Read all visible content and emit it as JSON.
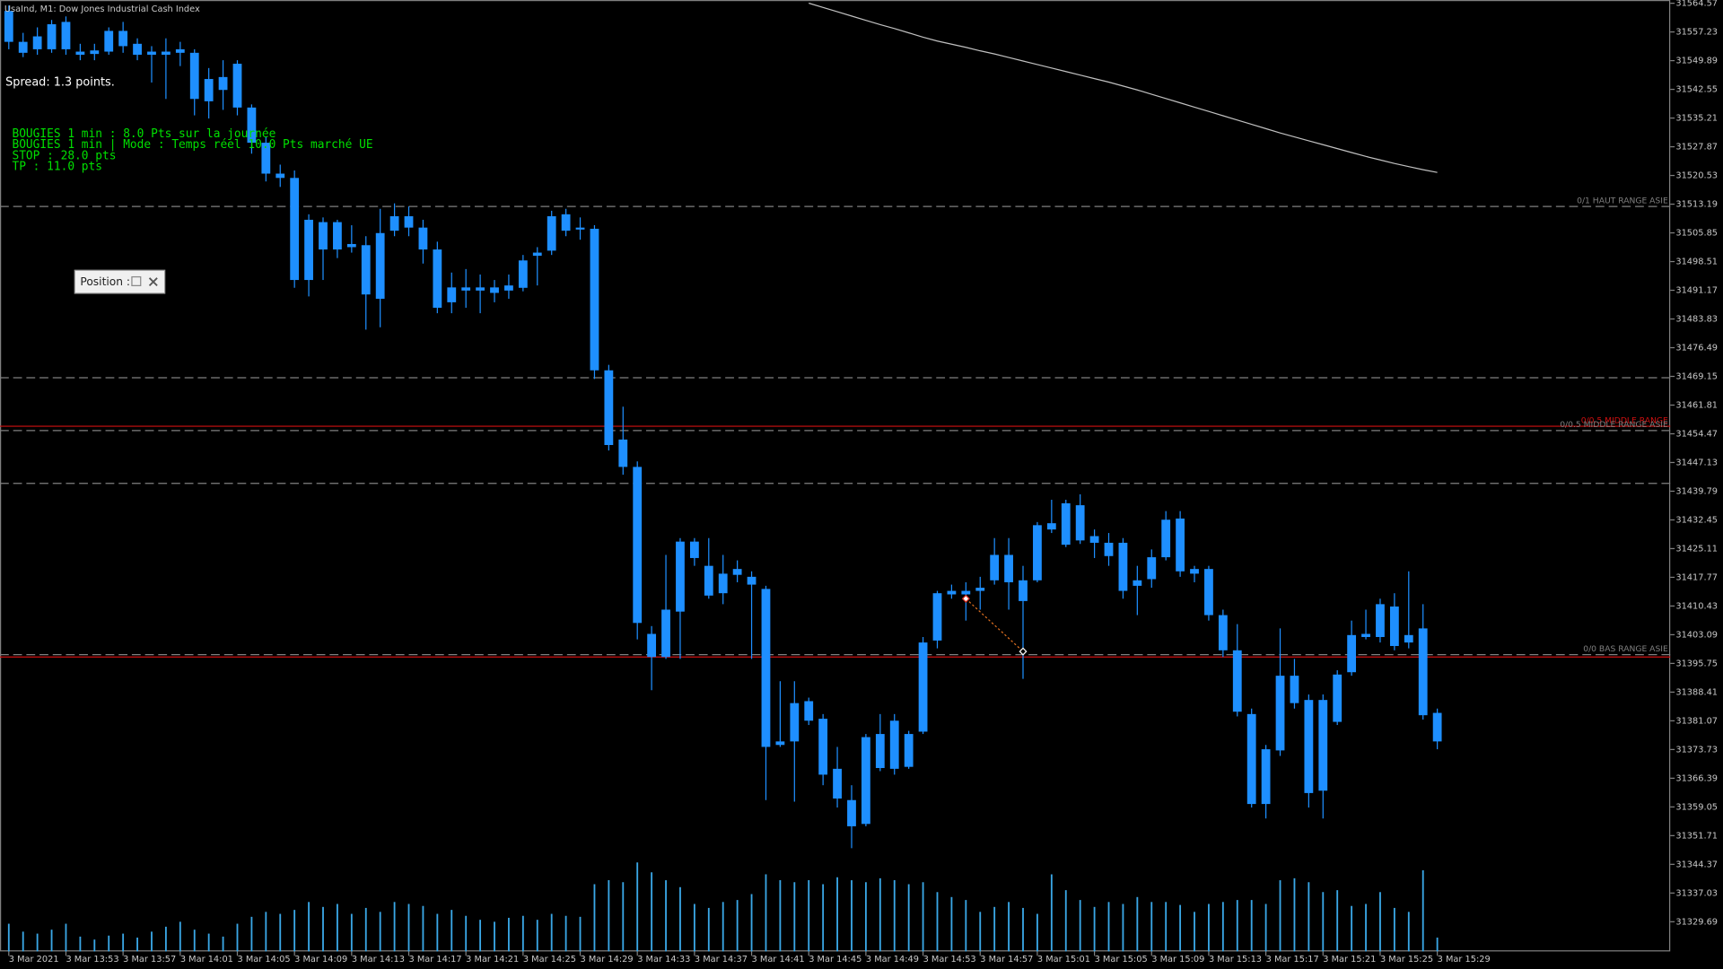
{
  "chart_data": {
    "type": "candlestick",
    "title": "UsaInd, M1:  Dow Jones Industrial Cash Index",
    "spread": "Spread: 1.3 points.",
    "info_lines": [
      "BOUGIES 1 min : 8.0 Pts sur la journée",
      "BOUGIES 1 min | Mode : Temps réel 10.0 Pts marché UE",
      "STOP : 28.0 pts",
      "TP : 11.0 pts"
    ],
    "panel": "Position :",
    "color": "#1e8fff",
    "volume_color": "#3aa7e6",
    "ma_color": "#c0c0c0",
    "categories": [
      "3 Mar 2021",
      null,
      null,
      null,
      "3 Mar 13:53",
      null,
      null,
      null,
      "3 Mar 13:57",
      null,
      null,
      null,
      "3 Mar 14:01",
      null,
      null,
      null,
      "3 Mar 14:05",
      null,
      null,
      null,
      "3 Mar 14:09",
      null,
      null,
      null,
      "3 Mar 14:13",
      null,
      null,
      null,
      "3 Mar 14:17",
      null,
      null,
      null,
      "3 Mar 14:21",
      null,
      null,
      null,
      "3 Mar 14:25",
      null,
      null,
      null,
      "3 Mar 14:29",
      null,
      null,
      null,
      "3 Mar 14:33",
      null,
      null,
      null,
      "3 Mar 14:37",
      null,
      null,
      null,
      "3 Mar 14:41",
      null,
      null,
      null,
      "3 Mar 14:45",
      null,
      null,
      null,
      "3 Mar 14:49",
      null,
      null,
      null,
      "3 Mar 14:53",
      null,
      null,
      null,
      "3 Mar 14:57",
      null,
      null,
      null,
      "3 Mar 15:01",
      null,
      null,
      null,
      "3 Mar 15:05",
      null,
      null,
      null,
      "3 Mar 15:09",
      null,
      null,
      null,
      "3 Mar 15:13",
      null,
      null,
      null,
      "3 Mar 15:17",
      null,
      null,
      null,
      "3 Mar 15:21",
      null,
      null,
      null,
      "3 Mar 15:25",
      null,
      null,
      null,
      "3 Mar 15:29"
    ],
    "open": [
      31562.6,
      31554.7,
      31552.8,
      31552.8,
      31559.8,
      31552.2,
      31551.6,
      31552.2,
      31557.5,
      31554.2,
      31552.2,
      31551.4,
      31552.8,
      31551.9,
      31539.5,
      31542.4,
      31549.1,
      31537.9,
      31528.9,
      31521.0,
      31519.9,
      31493.8,
      31508.6,
      31501.6,
      31503.0,
      31502.7,
      31489.0,
      31506.4,
      31510.1,
      31507.2,
      31501.6,
      31488.1,
      31491.9,
      31491.1,
      31491.9,
      31491.1,
      31491.8,
      31500.0,
      31501.3,
      31510.6,
      31507.2,
      31506.9,
      31470.7,
      31453.0,
      31446.0,
      31403.3,
      31397.4,
      31409.0,
      31426.9,
      31420.7,
      31413.7,
      31419.9,
      31417.9,
      31414.8,
      31375.8,
      31375.8,
      31386.1,
      31381.6,
      31368.8,
      31360.8,
      31354.7,
      31377.7,
      31368.8,
      31377.7,
      31378.3,
      31401.6,
      31414.3,
      31414.3,
      31414.3,
      31417.0,
      31423.5,
      31417.0,
      31417.0,
      31431.6,
      31426.1,
      31436.2,
      31428.3,
      31426.6,
      31414.3,
      31417.0,
      31417.3,
      31422.9,
      31432.8,
      31419.9,
      31419.9,
      31408.1,
      31399.1,
      31382.8,
      31359.8,
      31373.5,
      31392.6,
      31386.4,
      31363.2,
      31380.8,
      31393.5,
      31403.3,
      31402.5,
      31410.3,
      31401.1,
      31404.7,
      31383.1
    ],
    "high": [
      31564.0,
      31557.0,
      31558.4,
      31560.3,
      31561.2,
      31554.2,
      31554.2,
      31558.4,
      31559.8,
      31555.6,
      31553.6,
      31555.6,
      31554.7,
      31552.8,
      31548.0,
      31550.0,
      31550.0,
      31538.7,
      31530.3,
      31523.3,
      31521.8,
      31510.6,
      31509.8,
      31509.2,
      31507.8,
      31505.0,
      31512.0,
      31513.4,
      31512.6,
      31509.2,
      31503.6,
      31495.7,
      31496.6,
      31495.2,
      31493.8,
      31495.2,
      31500.2,
      31502.2,
      31511.5,
      31512.0,
      31509.8,
      31507.8,
      31472.1,
      31461.4,
      31447.4,
      31405.3,
      31423.5,
      31427.8,
      31427.8,
      31427.8,
      31423.5,
      31422.1,
      31419.3,
      31415.6,
      31391.2,
      31391.2,
      31387.0,
      31382.8,
      31374.4,
      31364.6,
      31377.7,
      31382.8,
      31382.8,
      31378.5,
      31402.5,
      31414.3,
      31415.9,
      31416.5,
      31417.9,
      31427.8,
      31427.8,
      31420.7,
      31431.9,
      31437.6,
      31437.6,
      31439.0,
      31430.0,
      31429.1,
      31427.8,
      31420.7,
      31424.9,
      31434.7,
      31434.7,
      31420.7,
      31420.7,
      31409.5,
      31405.8,
      31384.2,
      31374.9,
      31404.7,
      31396.9,
      31387.8,
      31387.8,
      31394.0,
      31406.7,
      31409.5,
      31412.3,
      31413.7,
      31419.3,
      31410.9,
      31384.2
    ],
    "low": [
      31552.8,
      31550.8,
      31551.4,
      31551.9,
      31551.4,
      31550.0,
      31550.0,
      31551.4,
      31551.9,
      31550.0,
      31544.3,
      31540.1,
      31548.5,
      31535.9,
      31535.1,
      31537.3,
      31535.9,
      31526.1,
      31519.0,
      31517.6,
      31491.8,
      31489.6,
      31493.8,
      31499.4,
      31500.8,
      31481.1,
      31481.7,
      31505.0,
      31505.0,
      31498.0,
      31485.3,
      31485.3,
      31486.7,
      31485.3,
      31488.1,
      31489.0,
      31490.9,
      31492.4,
      31500.2,
      31505.0,
      31504.1,
      31468.5,
      31450.2,
      31444.0,
      31401.9,
      31388.9,
      31396.9,
      31396.9,
      31420.7,
      31412.3,
      31410.9,
      31416.5,
      31396.9,
      31360.8,
      31374.4,
      31360.4,
      31380.0,
      31364.6,
      31358.9,
      31348.5,
      31354.1,
      31368.2,
      31367.3,
      31368.8,
      31377.7,
      31399.6,
      31412.3,
      31406.7,
      31409.5,
      31415.9,
      31409.5,
      31391.8,
      31416.5,
      31429.1,
      31425.5,
      31426.3,
      31422.7,
      31420.7,
      31412.3,
      31408.1,
      31415.1,
      31422.1,
      31417.9,
      31416.5,
      31406.7,
      31397.4,
      31382.2,
      31358.9,
      31356.1,
      31372.1,
      31384.2,
      31358.9,
      31356.1,
      31380.0,
      31392.6,
      31401.9,
      31401.1,
      31399.1,
      31399.6,
      31381.4,
      31373.8
    ],
    "close": [
      31554.7,
      31551.9,
      31556.1,
      31559.2,
      31552.8,
      31551.4,
      31552.5,
      31557.5,
      31553.6,
      31551.4,
      31551.4,
      31552.2,
      31551.9,
      31540.1,
      31545.2,
      31545.7,
      31537.9,
      31528.9,
      31521.0,
      31519.9,
      31493.8,
      31509.2,
      31501.6,
      31508.6,
      31502.2,
      31490.1,
      31505.8,
      31510.1,
      31507.2,
      31501.6,
      31486.7,
      31491.9,
      31491.1,
      31491.9,
      31490.5,
      31492.4,
      31498.8,
      31500.8,
      31510.1,
      31506.4,
      31506.7,
      31470.7,
      31451.6,
      31446.0,
      31406.1,
      31397.4,
      31409.5,
      31426.9,
      31422.7,
      31413.1,
      31418.7,
      31418.4,
      31415.9,
      31374.4,
      31374.9,
      31385.6,
      31381.1,
      31367.3,
      31361.2,
      31354.1,
      31376.9,
      31369.0,
      31381.1,
      31369.3,
      31401.1,
      31413.7,
      31413.4,
      31413.4,
      31415.1,
      31423.5,
      31416.5,
      31411.7,
      31431.1,
      31430.0,
      31436.7,
      31427.2,
      31426.6,
      31423.2,
      31426.6,
      31415.6,
      31422.9,
      31432.5,
      31419.3,
      31418.7,
      31408.1,
      31399.1,
      31383.4,
      31359.8,
      31373.8,
      31392.6,
      31385.6,
      31362.6,
      31386.4,
      31392.9,
      31403.0,
      31402.5,
      31410.9,
      31400.2,
      31403.0,
      31382.5,
      31375.8
    ],
    "volumes": [
      28,
      20,
      18,
      22,
      28,
      15,
      12,
      16,
      18,
      14,
      20,
      25,
      30,
      22,
      18,
      15,
      28,
      35,
      40,
      38,
      42,
      50,
      45,
      48,
      38,
      44,
      40,
      50,
      48,
      46,
      38,
      42,
      36,
      32,
      30,
      34,
      36,
      32,
      38,
      36,
      35,
      68,
      72,
      70,
      90,
      80,
      72,
      65,
      48,
      44,
      50,
      52,
      58,
      78,
      72,
      70,
      72,
      68,
      75,
      72,
      70,
      74,
      72,
      68,
      70,
      60,
      55,
      52,
      40,
      45,
      50,
      44,
      38,
      78,
      62,
      52,
      45,
      50,
      48,
      55,
      50,
      50,
      47,
      40,
      48,
      50,
      52,
      52,
      48,
      72,
      74,
      70,
      60,
      62,
      46,
      48,
      60,
      44,
      40,
      82,
      14
    ],
    "volume_ylim": [
      0,
      100
    ],
    "ma": [
      null,
      null,
      null,
      null,
      null,
      null,
      null,
      null,
      null,
      null,
      null,
      null,
      null,
      null,
      null,
      null,
      null,
      null,
      null,
      null,
      null,
      null,
      null,
      null,
      null,
      null,
      null,
      null,
      null,
      null,
      null,
      null,
      null,
      null,
      null,
      null,
      null,
      null,
      null,
      null,
      null,
      null,
      null,
      null,
      null,
      null,
      null,
      null,
      null,
      null,
      null,
      null,
      null,
      null,
      null,
      null,
      31564.6,
      31563.5,
      31562.4,
      31561.3,
      31560.2,
      31559.1,
      31558.1,
      31557.0,
      31555.9,
      31554.9,
      31554.1,
      31553.3,
      31552.4,
      31551.6,
      31550.7,
      31549.8,
      31548.9,
      31548.0,
      31547.1,
      31546.2,
      31545.3,
      31544.4,
      31543.4,
      31542.4,
      31541.3,
      31540.2,
      31539.1,
      31538.0,
      31536.9,
      31535.8,
      31534.7,
      31533.6,
      31532.5,
      31531.4,
      31530.4,
      31529.4,
      31528.4,
      31527.4,
      31526.4,
      31525.4,
      31524.5,
      31523.6,
      31522.8,
      31522.0,
      31521.3
    ],
    "levels": [
      {
        "value": 31512.6,
        "label": "0/1 HAUT RANGE ASIE",
        "color": "#808080",
        "style": "dashed"
      },
      {
        "value": 31468.8,
        "color": "#808080",
        "style": "dashed"
      },
      {
        "value": 31456.4,
        "label": "0/0.5 MIDDLE RANGE",
        "color": "#d01010",
        "style": "solid"
      },
      {
        "value": 31455.3,
        "label": "0/0.5 MIDDLE RANGE ASIE",
        "color": "#808080",
        "style": "dashed"
      },
      {
        "value": 31441.8,
        "color": "#808080",
        "style": "dashed"
      },
      {
        "value": 31398.0,
        "label": "0/0 BAS RANGE ASIE",
        "color": "#808080",
        "style": "dashed"
      },
      {
        "value": 31397.4,
        "color": "#d01010",
        "style": "solid"
      }
    ],
    "trade": {
      "open": 31412.3,
      "close": 31398.8
    },
    "ylim": [
      31322.1,
      31565.4
    ],
    "yticks": [
      31564.57,
      31557.23,
      31549.89,
      31542.55,
      31535.21,
      31527.87,
      31520.53,
      31513.19,
      31505.85,
      31498.51,
      31491.17,
      31483.83,
      31476.49,
      31469.15,
      31461.81,
      31454.47,
      31447.13,
      31439.79,
      31432.45,
      31425.11,
      31417.77,
      31410.43,
      31403.09,
      31395.75,
      31388.41,
      31381.07,
      31373.73,
      31366.39,
      31359.05,
      31351.71,
      31344.37,
      31337.03,
      31329.69
    ]
  }
}
